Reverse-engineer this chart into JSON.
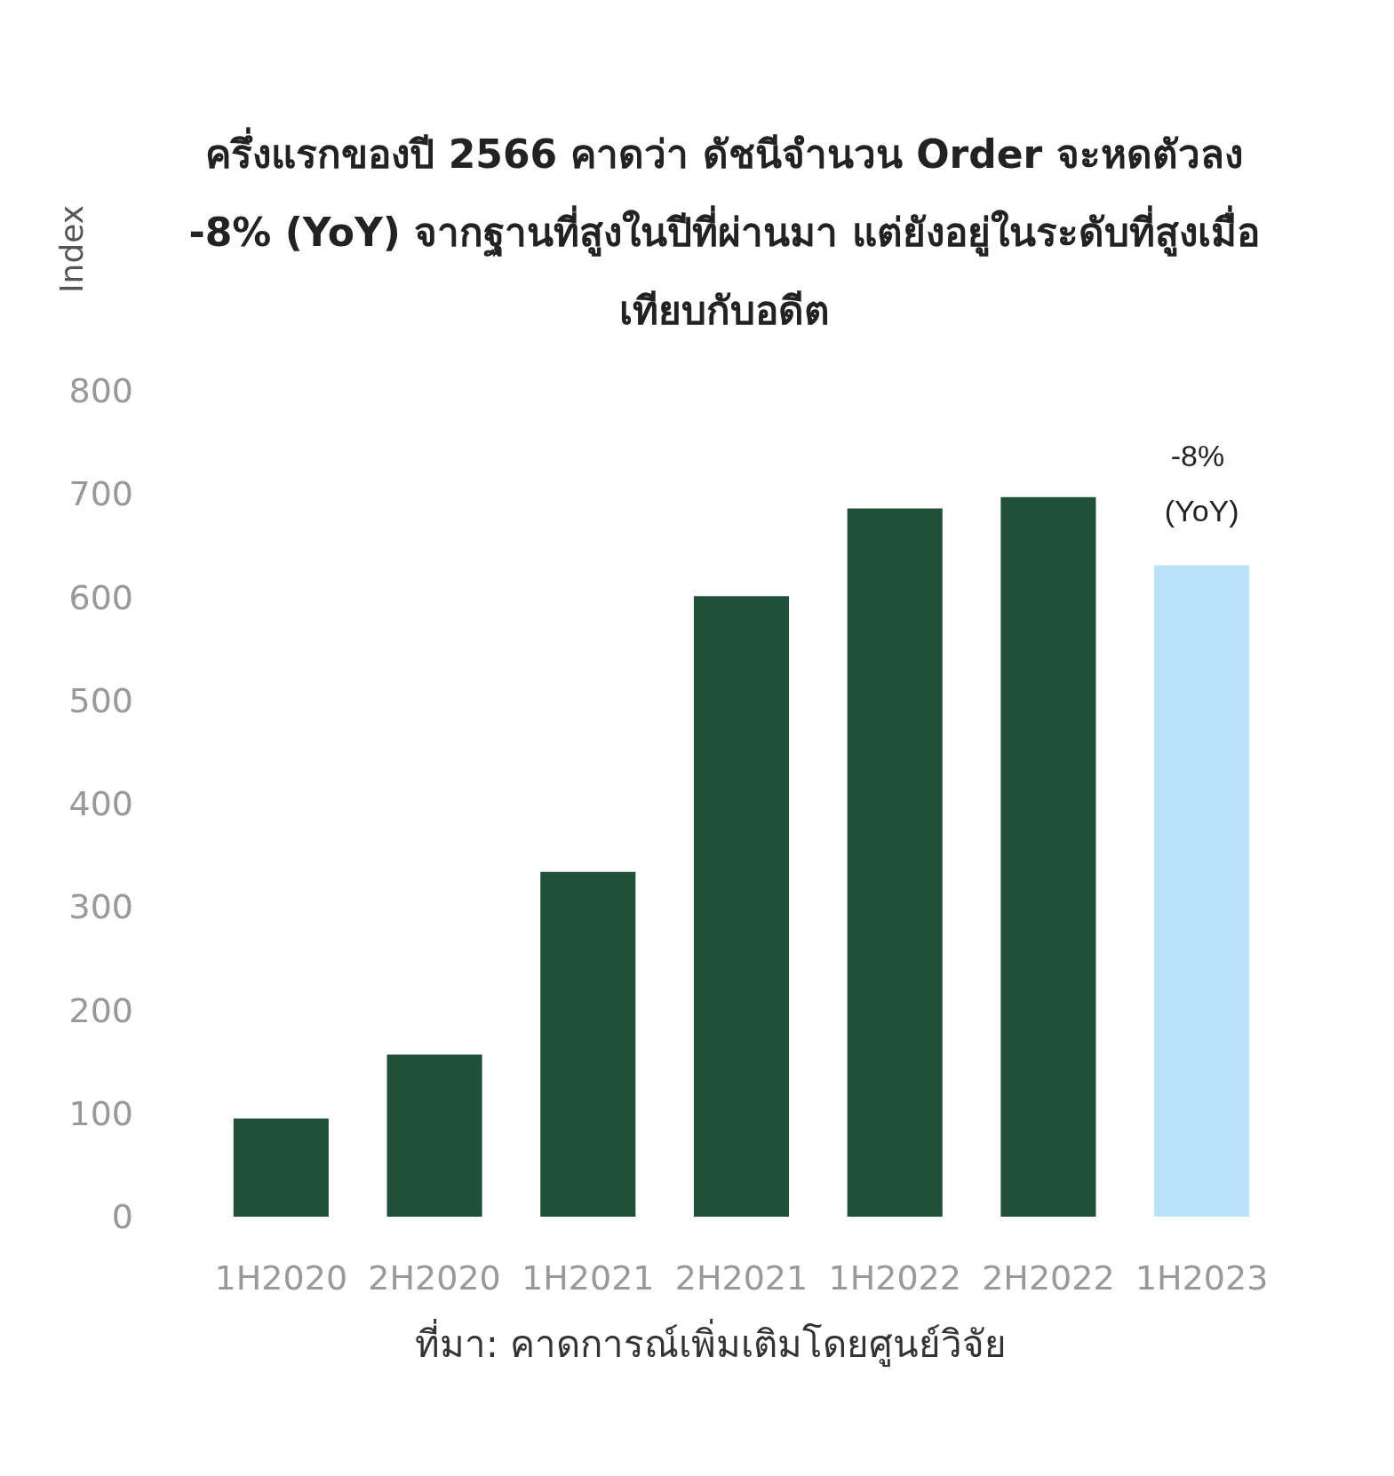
{
  "chart_data": {
    "type": "bar",
    "title": "ครึ่งแรกของปี 2566 คาดว่า ดัชนีจำนวน Order จะหดตัวลง -8% (YoY) จากฐานที่สูงในปีที่ผ่านมา แต่ยังอยู่ในระดับที่สูงเมื่อเทียบกับอดีต",
    "ylabel": "Index",
    "categories": [
      "1H2020",
      "2H2020",
      "1H2021",
      "2H2021",
      "1H2022",
      "2H2022",
      "1H2023"
    ],
    "values": [
      95,
      157,
      334,
      601,
      686,
      697,
      631
    ],
    "colors": [
      "#1e5138",
      "#1e5138",
      "#1e5138",
      "#1e5138",
      "#1e5138",
      "#1e5138",
      "#b9e3f9"
    ],
    "ylim": [
      0,
      800
    ],
    "yticks": [
      0,
      100,
      200,
      300,
      400,
      500,
      600,
      700,
      800
    ],
    "grid": false,
    "annotations": [
      {
        "text": "-8% (YoY)",
        "x": "1H2023",
        "y": 631
      },
      "ที่มา: คาดการณ์เพิ่มเติมโดยศูนย์วิจัย"
    ]
  }
}
